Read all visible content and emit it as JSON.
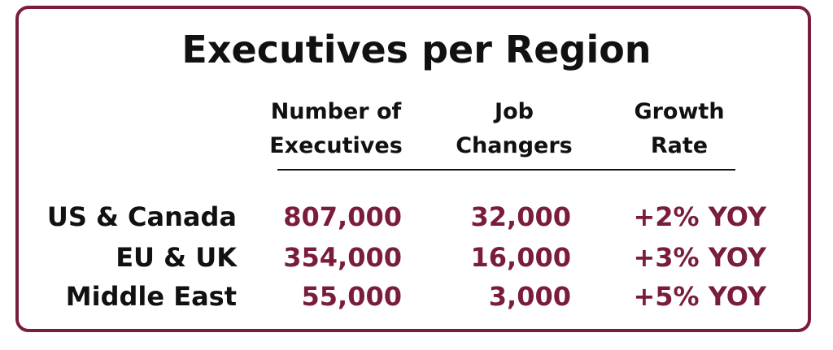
{
  "title": "Executives per Region",
  "columns": [
    {
      "line1": "Number of",
      "line2": "Executives"
    },
    {
      "line1": "Job",
      "line2": "Changers"
    },
    {
      "line1": "Growth",
      "line2": "Rate"
    }
  ],
  "rows": [
    {
      "region": "US & Canada",
      "executives": "807,000",
      "job_changers": "32,000",
      "growth": "+2% YOY"
    },
    {
      "region": "EU & UK",
      "executives": "354,000",
      "job_changers": "16,000",
      "growth": "+3% YOY"
    },
    {
      "region": "Middle East",
      "executives": "55,000",
      "job_changers": "3,000",
      "growth": "+5% YOY"
    }
  ],
  "colors": {
    "accent": "#7a1d3c",
    "text": "#111111"
  }
}
